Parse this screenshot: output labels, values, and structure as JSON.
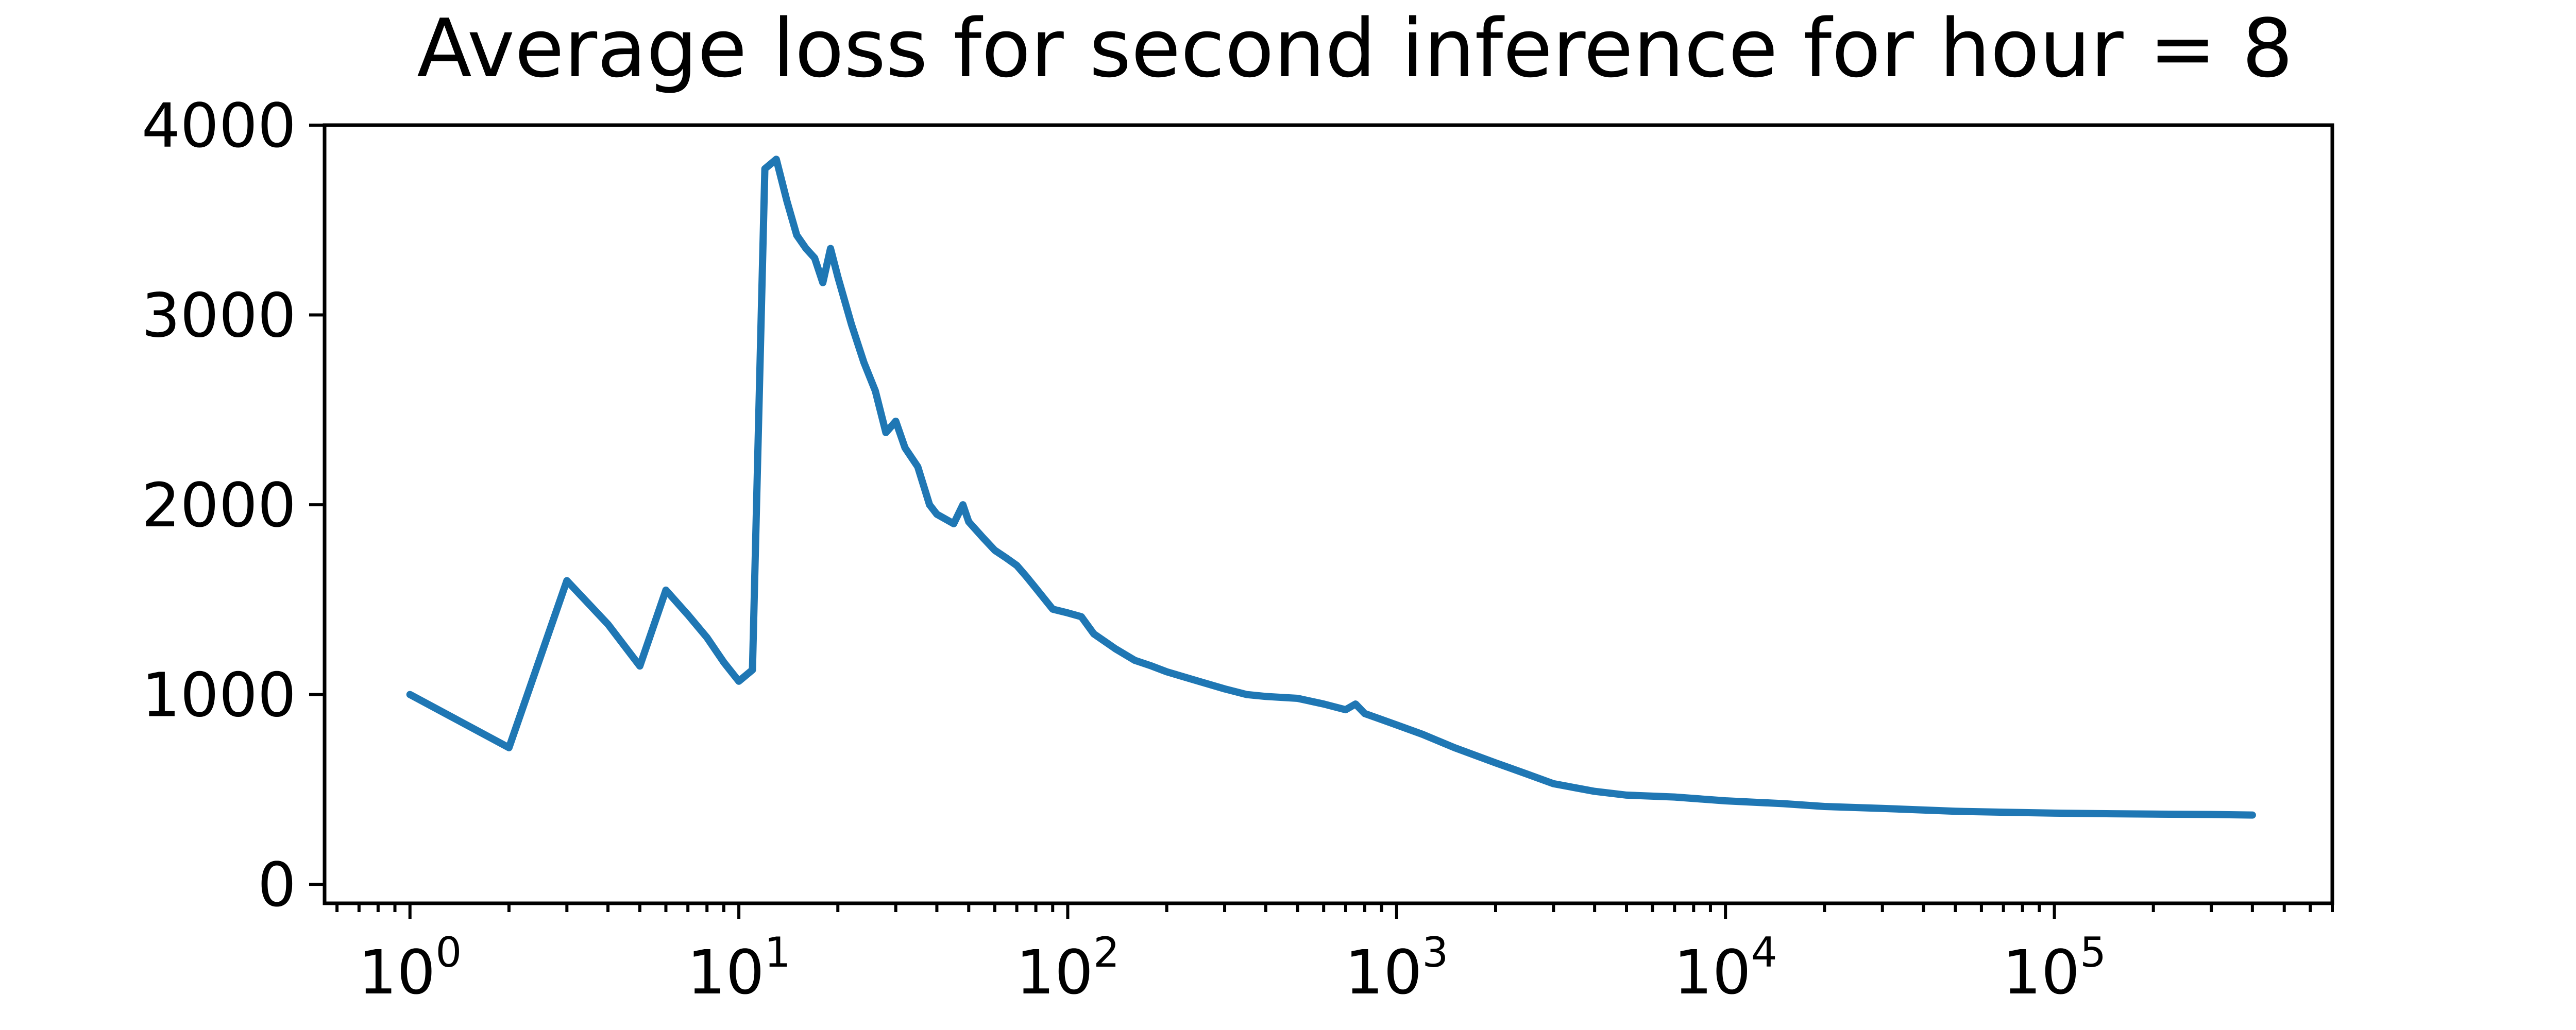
{
  "chart_data": {
    "type": "line",
    "title": "Average loss for second inference for hour = 8",
    "xlabel": "",
    "ylabel": "",
    "xscale": "log",
    "xlim": [
      0.55,
      700000
    ],
    "ylim": [
      -100,
      4000
    ],
    "grid": false,
    "legend": "none",
    "colors": {
      "series": "#1f77b4"
    },
    "x_ticks": [
      {
        "value": 1,
        "base": "10",
        "exp": "0"
      },
      {
        "value": 10,
        "base": "10",
        "exp": "1"
      },
      {
        "value": 100,
        "base": "10",
        "exp": "2"
      },
      {
        "value": 1000,
        "base": "10",
        "exp": "3"
      },
      {
        "value": 10000,
        "base": "10",
        "exp": "4"
      },
      {
        "value": 100000,
        "base": "10",
        "exp": "5"
      }
    ],
    "y_ticks": [
      {
        "value": 0,
        "label": "0"
      },
      {
        "value": 1000,
        "label": "1000"
      },
      {
        "value": 2000,
        "label": "2000"
      },
      {
        "value": 3000,
        "label": "3000"
      },
      {
        "value": 4000,
        "label": "4000"
      }
    ],
    "series": [
      {
        "x": [
          1,
          2,
          3,
          4,
          5,
          6,
          7,
          8,
          9,
          10,
          11,
          12,
          13,
          14,
          15,
          16,
          17,
          18,
          19,
          20,
          22,
          24,
          26,
          28,
          30,
          32,
          35,
          38,
          40,
          45,
          48,
          50,
          55,
          60,
          65,
          70,
          75,
          80,
          90,
          100,
          110,
          120,
          140,
          160,
          180,
          200,
          250,
          300,
          350,
          400,
          500,
          600,
          700,
          750,
          800,
          1000,
          1200,
          1500,
          2000,
          2500,
          3000,
          4000,
          5000,
          7000,
          10000,
          15000,
          20000,
          30000,
          50000,
          70000,
          100000,
          150000,
          200000,
          300000,
          400000
        ],
        "y": [
          1000,
          720,
          1600,
          1370,
          1150,
          1550,
          1420,
          1300,
          1170,
          1070,
          1130,
          3770,
          3820,
          3600,
          3420,
          3350,
          3300,
          3170,
          3350,
          3200,
          2950,
          2750,
          2600,
          2380,
          2440,
          2300,
          2200,
          2000,
          1950,
          1900,
          2000,
          1910,
          1830,
          1760,
          1720,
          1680,
          1620,
          1560,
          1450,
          1430,
          1410,
          1320,
          1240,
          1180,
          1150,
          1120,
          1070,
          1030,
          1000,
          990,
          980,
          950,
          920,
          950,
          900,
          840,
          790,
          720,
          640,
          580,
          530,
          490,
          470,
          460,
          440,
          425,
          410,
          400,
          385,
          380,
          375,
          372,
          370,
          368,
          365
        ]
      }
    ]
  }
}
